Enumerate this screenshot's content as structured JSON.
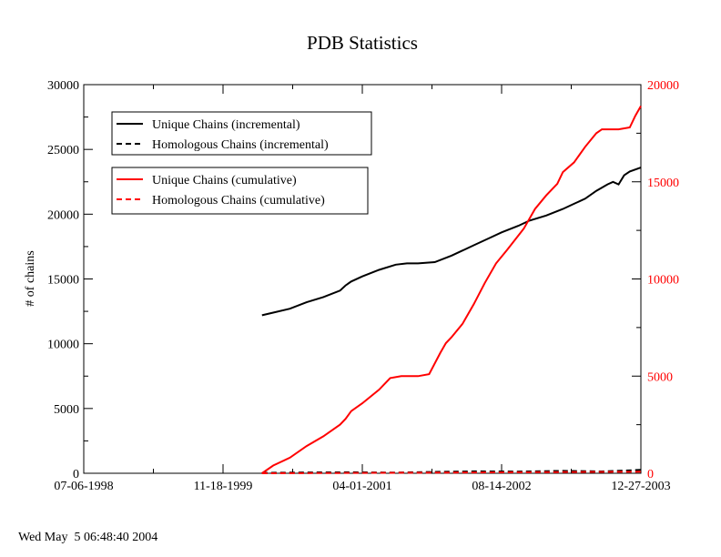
{
  "chart_data": {
    "type": "line",
    "title": "PDB Statistics",
    "ylabel": "# of chains",
    "y2label": "",
    "footer": "Wed May  5 06:48:40 2004",
    "x_tick_labels": [
      "07-06-1998",
      "11-18-1999",
      "04-01-2001",
      "08-14-2002",
      "12-27-2003"
    ],
    "xlim": [
      "07-06-1998",
      "12-27-2003"
    ],
    "ylim": [
      0,
      30000
    ],
    "y_ticks": [
      0,
      5000,
      10000,
      15000,
      20000,
      25000,
      30000
    ],
    "y2lim": [
      0,
      20000
    ],
    "y2_ticks": [
      0,
      5000,
      10000,
      15000,
      20000
    ],
    "legend_placement": "top-left",
    "colors": {
      "incremental": "#000000",
      "cumulative": "#ff0000"
    },
    "legend": {
      "box1": [
        {
          "label": "Unique Chains (incremental)",
          "color": "#000000",
          "dash": "solid"
        },
        {
          "label": "Homologous Chains (incremental)",
          "color": "#000000",
          "dash": "dashed"
        }
      ],
      "box2": [
        {
          "label": "Unique Chains (cumulative)",
          "color": "#ff0000",
          "dash": "solid"
        },
        {
          "label": "Homologous Chains (cumulative)",
          "color": "#ff0000",
          "dash": "dashed"
        }
      ]
    },
    "x_unit": "fraction of time axis from 07-06-1998 to 12-27-2003",
    "series": [
      {
        "name": "Unique Chains (incremental)",
        "axis": "left",
        "color": "#000000",
        "dash": "solid",
        "x": [
          0.32,
          0.34,
          0.37,
          0.4,
          0.43,
          0.46,
          0.47,
          0.48,
          0.5,
          0.53,
          0.56,
          0.58,
          0.6,
          0.63,
          0.66,
          0.68,
          0.7,
          0.73,
          0.75,
          0.78,
          0.8,
          0.83,
          0.86,
          0.88,
          0.9,
          0.92,
          0.94,
          0.95,
          0.96,
          0.97,
          0.98,
          1.0
        ],
        "values": [
          12200,
          12400,
          12700,
          13200,
          13600,
          14100,
          14500,
          14800,
          15200,
          15700,
          16100,
          16200,
          16200,
          16300,
          16800,
          17200,
          17600,
          18200,
          18600,
          19100,
          19500,
          19900,
          20400,
          20800,
          21200,
          21800,
          22300,
          22500,
          22300,
          23000,
          23300,
          23600
        ]
      },
      {
        "name": "Homologous Chains (incremental)",
        "axis": "left",
        "color": "#000000",
        "dash": "dashed",
        "x": [
          0.32,
          0.4,
          0.48,
          0.56,
          0.62,
          0.7,
          0.78,
          0.86,
          0.93,
          1.0
        ],
        "values": [
          30,
          60,
          80,
          50,
          100,
          150,
          130,
          180,
          140,
          260
        ]
      },
      {
        "name": "Unique Chains (cumulative)",
        "axis": "right",
        "color": "#ff0000",
        "dash": "solid",
        "x": [
          0.32,
          0.34,
          0.37,
          0.4,
          0.43,
          0.46,
          0.47,
          0.48,
          0.5,
          0.53,
          0.55,
          0.57,
          0.6,
          0.62,
          0.64,
          0.65,
          0.66,
          0.68,
          0.7,
          0.72,
          0.74,
          0.76,
          0.79,
          0.81,
          0.83,
          0.85,
          0.86,
          0.88,
          0.9,
          0.92,
          0.93,
          0.94,
          0.96,
          0.98,
          0.99,
          1.0
        ],
        "values": [
          0,
          400,
          800,
          1400,
          1900,
          2500,
          2800,
          3200,
          3600,
          4300,
          4900,
          5000,
          5000,
          5100,
          6200,
          6700,
          7000,
          7700,
          8700,
          9800,
          10800,
          11500,
          12600,
          13600,
          14300,
          14900,
          15500,
          16000,
          16800,
          17500,
          17700,
          17700,
          17700,
          17800,
          18400,
          18900
        ]
      },
      {
        "name": "Homologous Chains (cumulative)",
        "axis": "right",
        "color": "#ff0000",
        "dash": "dashed",
        "x": [
          0.32,
          0.5,
          0.7,
          0.85,
          1.0
        ],
        "values": [
          0,
          20,
          40,
          60,
          80
        ]
      }
    ]
  }
}
